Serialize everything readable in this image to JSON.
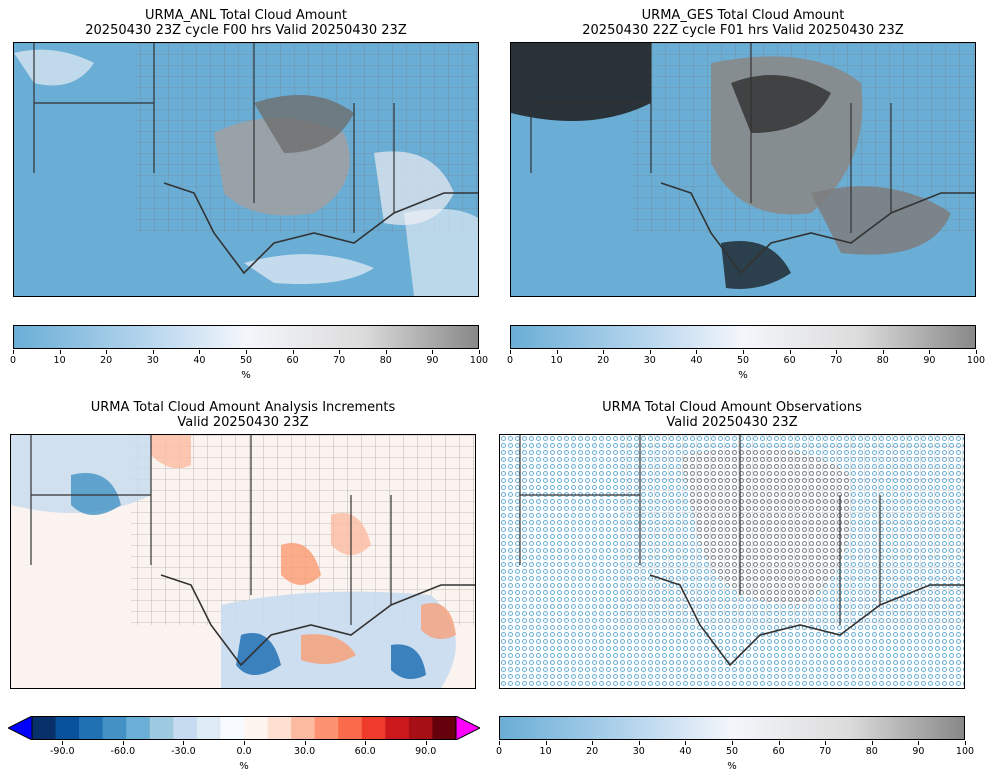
{
  "panels": [
    {
      "title_line1": "URMA_ANL Total Cloud Amount",
      "title_line2": "20250430 23Z cycle F00 hrs Valid 20250430 23Z"
    },
    {
      "title_line1": "URMA_GES Total Cloud Amount",
      "title_line2": "20250430 22Z cycle F01 hrs Valid 20250430 23Z"
    },
    {
      "title_line1": "URMA Total Cloud Amount Analysis Increments",
      "title_line2": "Valid 20250430 23Z"
    },
    {
      "title_line1": "URMA Total Cloud Amount Observations",
      "title_line2": "Valid 20250430 23Z"
    }
  ],
  "colorbars": {
    "percent": {
      "ticks": [
        "0",
        "10",
        "20",
        "30",
        "40",
        "50",
        "60",
        "70",
        "80",
        "90",
        "100"
      ],
      "unit": "%",
      "range": [
        0,
        100
      ]
    },
    "increment": {
      "ticks": [
        "-90.0",
        "-60.0",
        "-30.0",
        "0.0",
        "30.0",
        "60.0",
        "90.0"
      ],
      "unit": "%",
      "range": [
        -105,
        105
      ]
    }
  },
  "colors": {
    "cloud_low": "#6aaed6",
    "cloud_mid": "#f4f6fb",
    "cloud_high": "#888888",
    "incr_neg": "#08306b",
    "incr_pos": "#67000d",
    "incr_under": "#0000ff",
    "incr_over": "#ff00ff"
  }
}
